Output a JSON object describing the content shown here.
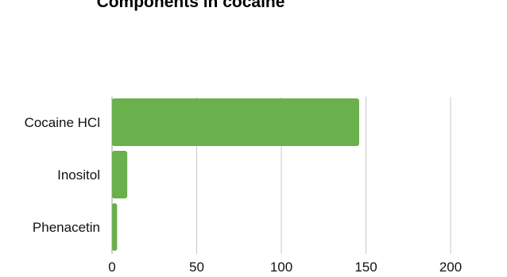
{
  "chart_data": {
    "type": "bar",
    "orientation": "horizontal",
    "title": "Components in cocaine",
    "categories": [
      "Cocaine HCl",
      "Inositol",
      "Phenacetin"
    ],
    "values": [
      146,
      9,
      3
    ],
    "xlim": [
      0,
      200
    ],
    "xticks": [
      "0",
      "50",
      "100",
      "150",
      "200"
    ],
    "grid": "vertical",
    "bar_color": "#6ab04c",
    "grid_color": "#c8c8c8",
    "xlabel": "",
    "ylabel": ""
  }
}
